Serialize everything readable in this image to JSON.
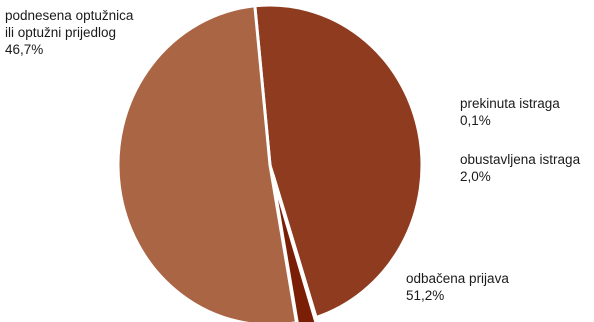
{
  "chart_data": {
    "type": "pie",
    "slices": [
      {
        "label_lines": [
          "podnesena optužnica",
          "ili optužni prijedlog"
        ],
        "value": 46.7,
        "value_label": "46,7%",
        "color": "#8f3b1f",
        "exploded": false
      },
      {
        "label_lines": [
          "prekinuta istraga"
        ],
        "value": 0.1,
        "value_label": "0,1%",
        "color": "#5e1a07",
        "exploded": true
      },
      {
        "label_lines": [
          "obustavljena istraga"
        ],
        "value": 2.0,
        "value_label": "2,0%",
        "color": "#7a1e06",
        "exploded": true
      },
      {
        "label_lines": [
          "odbačena prijava"
        ],
        "value": 51.2,
        "value_label": "51,2%",
        "color": "#aa6545",
        "exploded": false
      }
    ],
    "title": "",
    "legend": "none"
  }
}
